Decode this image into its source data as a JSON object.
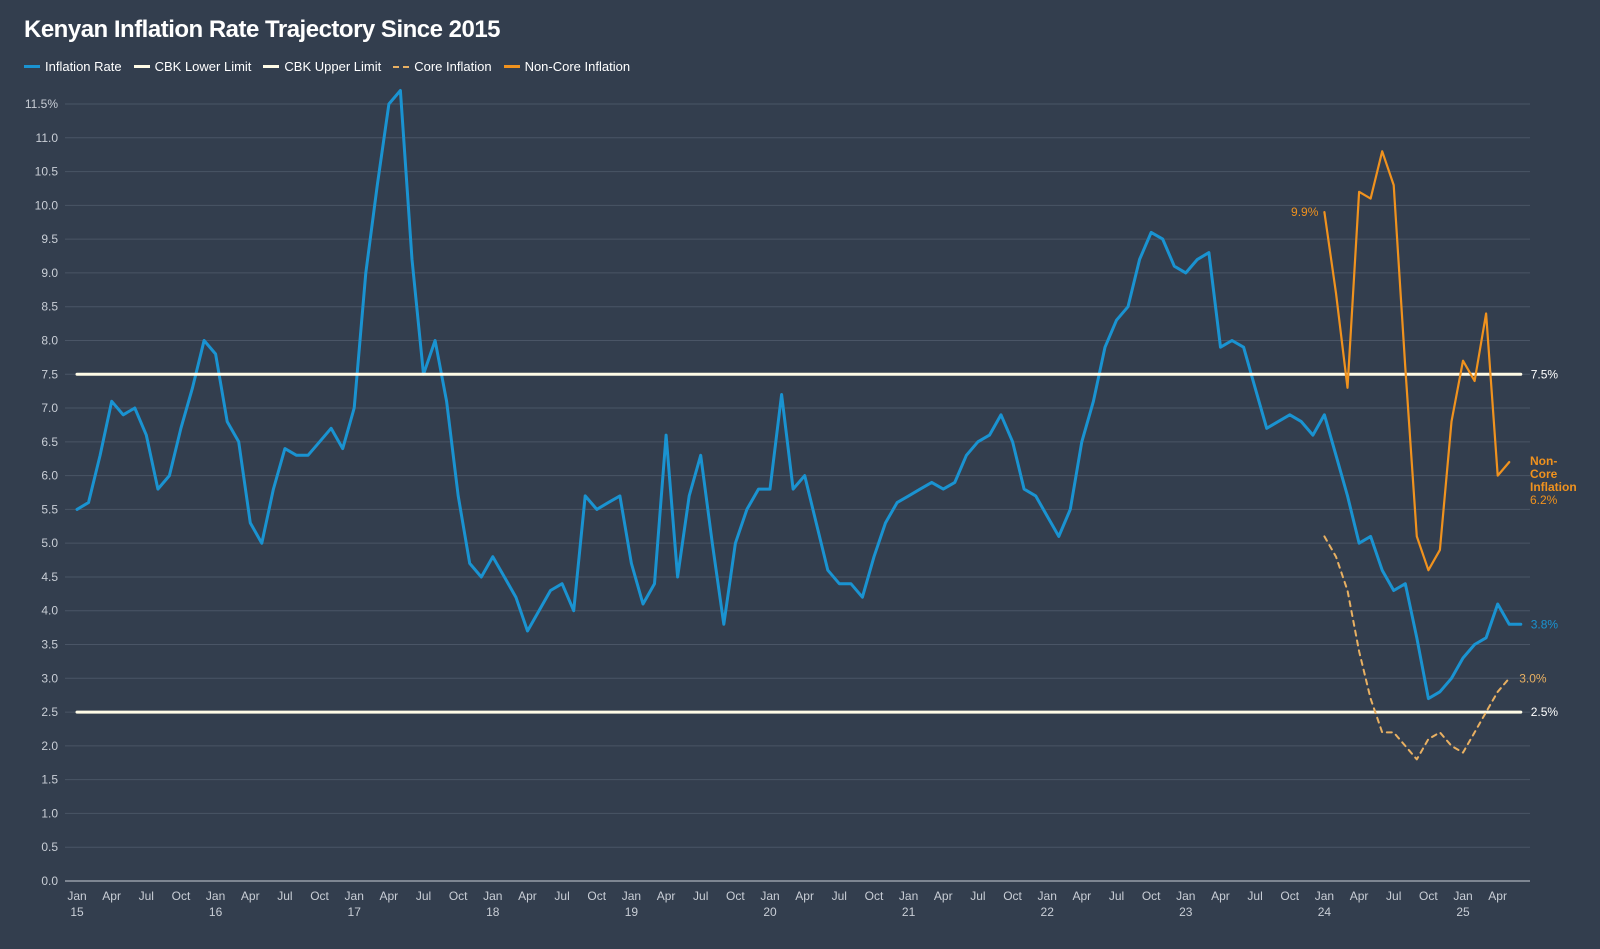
{
  "title": "Kenyan Inflation Rate Trajectory Since 2015",
  "legend": [
    {
      "label": "Inflation Rate",
      "color": "#1a93d1",
      "style": "solid"
    },
    {
      "label": "CBK Lower Limit",
      "color": "#fffbe6",
      "style": "solid"
    },
    {
      "label": "CBK Upper Limit",
      "color": "#fffbe6",
      "style": "solid"
    },
    {
      "label": "Core Inflation",
      "color": "#e8b062",
      "style": "dashed"
    },
    {
      "label": "Non-Core Inflation",
      "color": "#f0921e",
      "style": "solid"
    }
  ],
  "chart_data": {
    "type": "line",
    "title": "Kenyan Inflation Rate Trajectory Since 2015",
    "x_start": "2015-01",
    "x_end": "2025-06",
    "ylim": [
      0,
      11.5
    ],
    "y_ticks": [
      "0.0",
      "0.5",
      "1.0",
      "1.5",
      "2.0",
      "2.5",
      "3.0",
      "3.5",
      "4.0",
      "4.5",
      "5.0",
      "5.5",
      "6.0",
      "6.5",
      "7.0",
      "7.5",
      "8.0",
      "8.5",
      "9.0",
      "9.5",
      "10.0",
      "10.5",
      "11.0",
      "11.5%"
    ],
    "x_ticks": [
      {
        "month": "Jan",
        "year": "15"
      },
      {
        "month": "Apr"
      },
      {
        "month": "Jul"
      },
      {
        "month": "Oct"
      },
      {
        "month": "Jan",
        "year": "16"
      },
      {
        "month": "Apr"
      },
      {
        "month": "Jul"
      },
      {
        "month": "Oct"
      },
      {
        "month": "Jan",
        "year": "17"
      },
      {
        "month": "Apr"
      },
      {
        "month": "Jul"
      },
      {
        "month": "Oct"
      },
      {
        "month": "Jan",
        "year": "18"
      },
      {
        "month": "Apr"
      },
      {
        "month": "Jul"
      },
      {
        "month": "Oct"
      },
      {
        "month": "Jan",
        "year": "19"
      },
      {
        "month": "Apr"
      },
      {
        "month": "Jul"
      },
      {
        "month": "Oct"
      },
      {
        "month": "Jan",
        "year": "20"
      },
      {
        "month": "Apr"
      },
      {
        "month": "Jul"
      },
      {
        "month": "Oct"
      },
      {
        "month": "Jan",
        "year": "21"
      },
      {
        "month": "Apr"
      },
      {
        "month": "Jul"
      },
      {
        "month": "Oct"
      },
      {
        "month": "Jan",
        "year": "22"
      },
      {
        "month": "Apr"
      },
      {
        "month": "Jul"
      },
      {
        "month": "Oct"
      },
      {
        "month": "Jan",
        "year": "23"
      },
      {
        "month": "Apr"
      },
      {
        "month": "Jul"
      },
      {
        "month": "Oct"
      },
      {
        "month": "Jan",
        "year": "24"
      },
      {
        "month": "Apr"
      },
      {
        "month": "Jul"
      },
      {
        "month": "Oct"
      },
      {
        "month": "Jan",
        "year": "25"
      },
      {
        "month": "Apr"
      }
    ],
    "grid": true,
    "series": [
      {
        "name": "Inflation Rate",
        "color": "#1a93d1",
        "style": "solid",
        "start": "2015-01",
        "values": [
          5.5,
          5.6,
          6.3,
          7.1,
          6.9,
          7.0,
          6.6,
          5.8,
          6.0,
          6.7,
          7.3,
          8.0,
          7.8,
          6.8,
          6.5,
          5.3,
          5.0,
          5.8,
          6.4,
          6.3,
          6.3,
          6.5,
          6.7,
          6.4,
          7.0,
          9.0,
          10.3,
          11.5,
          11.7,
          9.2,
          7.5,
          8.0,
          7.1,
          5.7,
          4.7,
          4.5,
          4.8,
          4.5,
          4.2,
          3.7,
          4.0,
          4.3,
          4.4,
          4.0,
          5.7,
          5.5,
          5.6,
          5.7,
          4.7,
          4.1,
          4.4,
          6.6,
          4.5,
          5.7,
          6.3,
          5.0,
          3.8,
          5.0,
          5.5,
          5.8,
          5.8,
          7.2,
          5.8,
          6.0,
          5.3,
          4.6,
          4.4,
          4.4,
          4.2,
          4.8,
          5.3,
          5.6,
          5.7,
          5.8,
          5.9,
          5.8,
          5.9,
          6.3,
          6.5,
          6.6,
          6.9,
          6.5,
          5.8,
          5.7,
          5.4,
          5.1,
          5.5,
          6.5,
          7.1,
          7.9,
          8.3,
          8.5,
          9.2,
          9.6,
          9.5,
          9.1,
          9.0,
          9.2,
          9.3,
          7.9,
          8.0,
          7.9,
          7.3,
          6.7,
          6.8,
          6.9,
          6.8,
          6.6,
          6.9,
          6.3,
          5.7,
          5.0,
          5.1,
          4.6,
          4.3,
          4.4,
          3.6,
          2.7,
          2.8,
          3.0,
          3.3,
          3.5,
          3.6,
          4.1,
          3.8,
          3.8
        ],
        "end_label": "3.8%"
      },
      {
        "name": "CBK Lower Limit",
        "color": "#fffbe6",
        "style": "solid",
        "start": "2015-01",
        "constant": 2.5,
        "end_label": "2.5%"
      },
      {
        "name": "CBK Upper Limit",
        "color": "#fffbe6",
        "style": "solid",
        "start": "2015-01",
        "constant": 7.5,
        "end_label": "7.5%"
      },
      {
        "name": "Core Inflation",
        "color": "#e8b062",
        "style": "dashed",
        "start": "2024-01",
        "values": [
          5.1,
          4.8,
          4.3,
          3.4,
          2.7,
          2.2,
          2.2,
          2.0,
          1.8,
          2.1,
          2.2,
          2.0,
          1.9,
          2.2,
          2.5,
          2.8,
          3.0
        ],
        "end_label": "3.0%"
      },
      {
        "name": "Non-Core Inflation",
        "color": "#f0921e",
        "style": "solid",
        "start": "2024-01",
        "values": [
          9.9,
          8.7,
          7.3,
          10.2,
          10.1,
          10.8,
          10.3,
          7.6,
          5.1,
          4.6,
          4.9,
          6.8,
          7.7,
          7.4,
          8.4,
          6.0,
          6.2
        ],
        "start_label": "9.9%",
        "end_label": "Non-Core Inflation 6.2%"
      }
    ],
    "series_labels": {
      "noncore_name_lines": [
        "Non-",
        "Core",
        "Inflation"
      ],
      "noncore_value": "6.2%"
    }
  }
}
